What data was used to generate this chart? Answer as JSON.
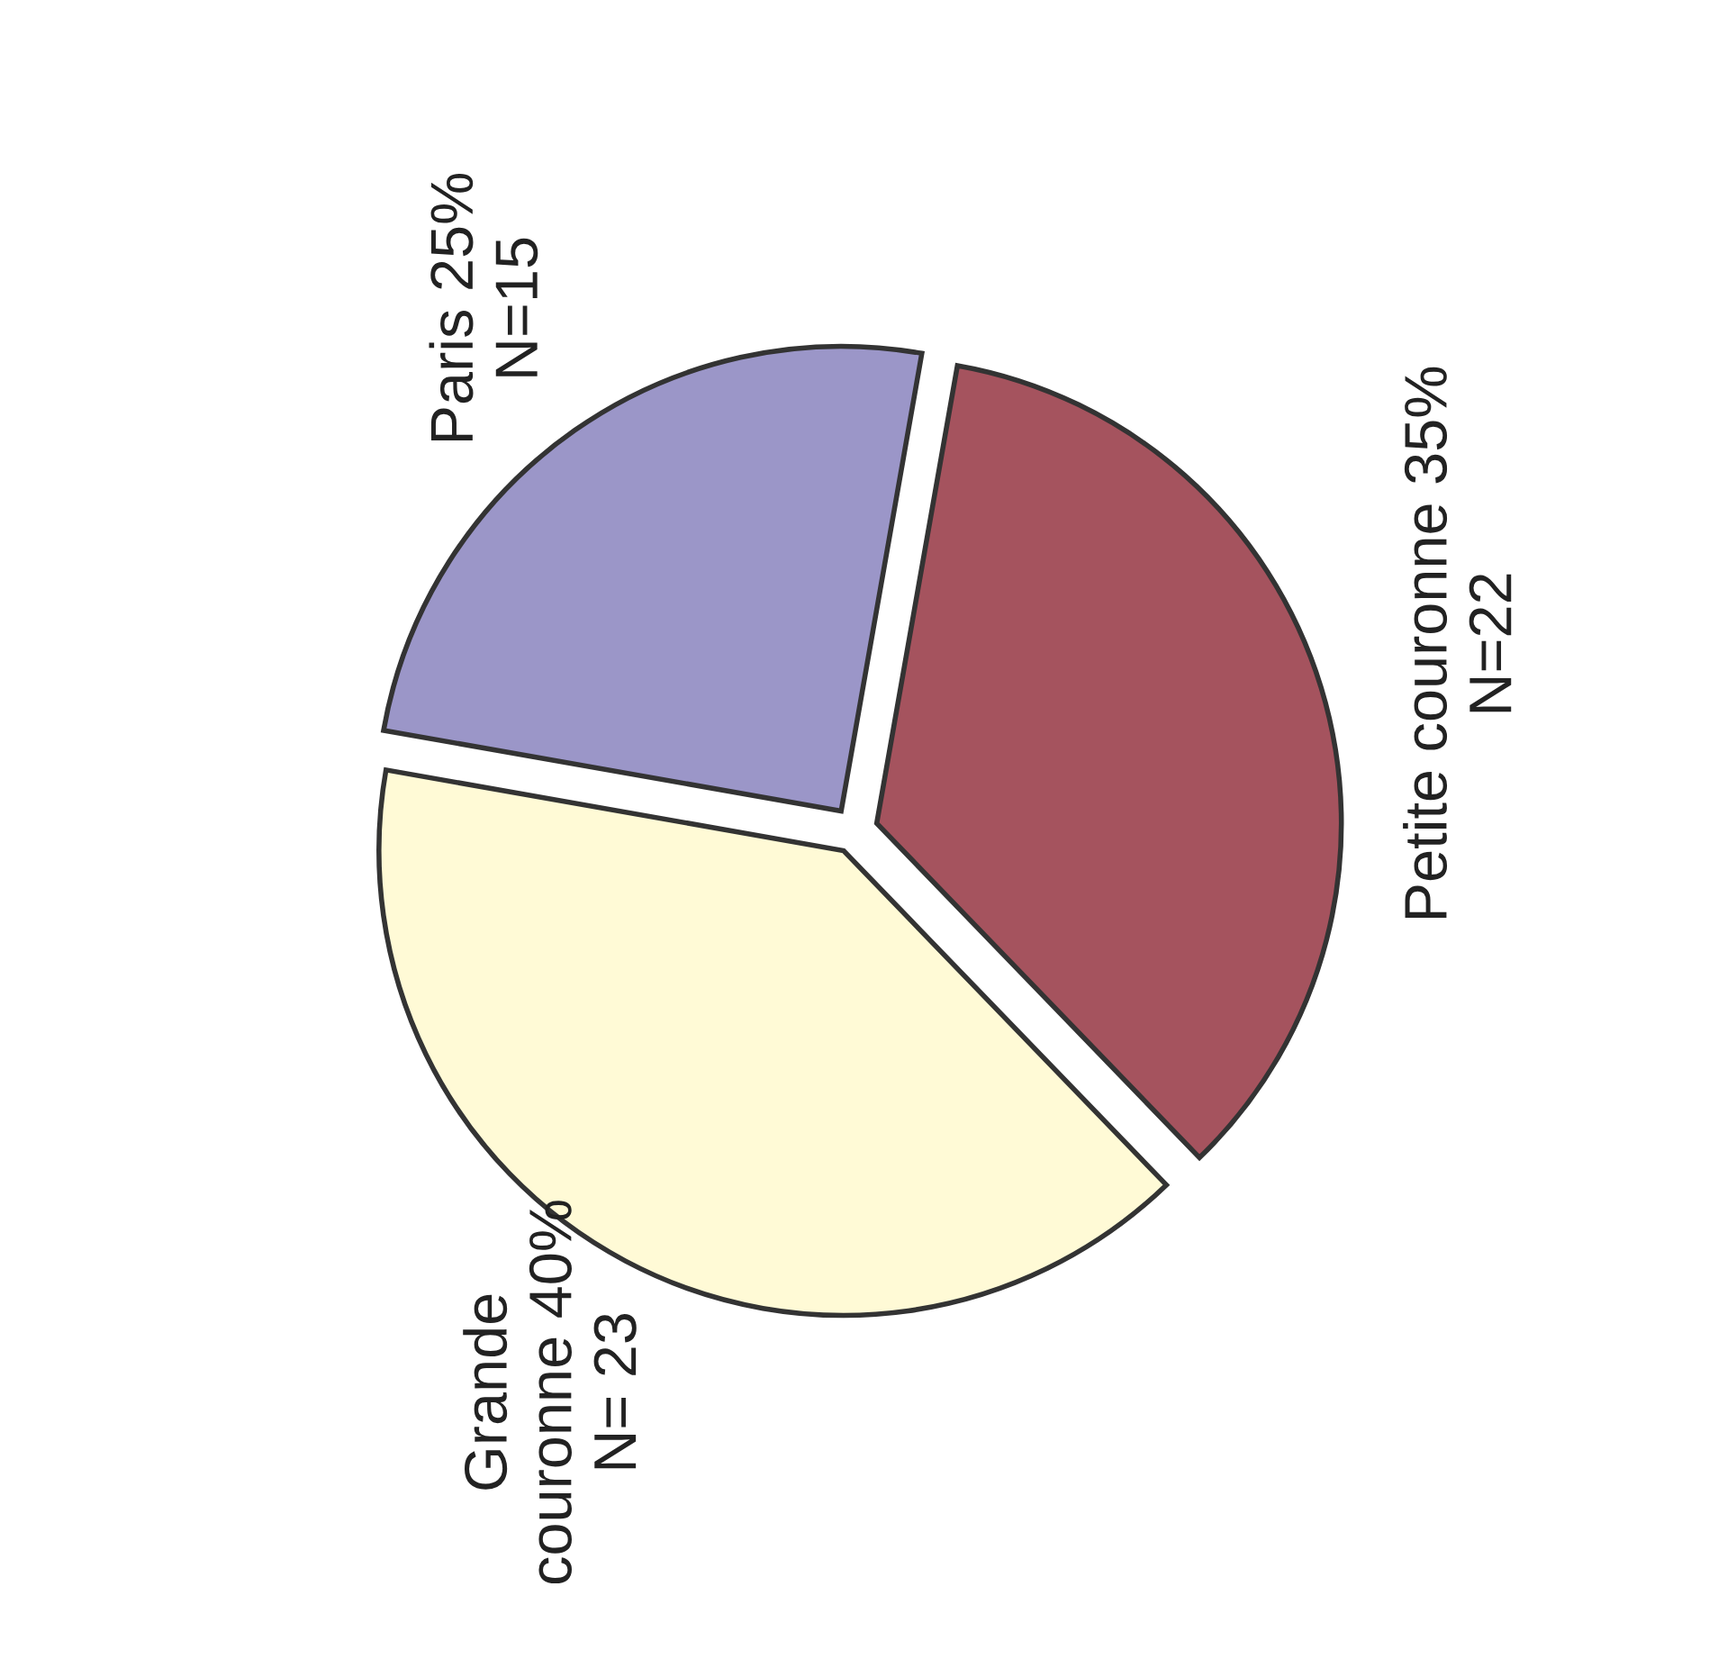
{
  "chart_data": {
    "type": "pie",
    "categories": [
      "Paris",
      "Grande\ncouronne",
      "Petite couronne"
    ],
    "values": [
      25,
      40,
      35
    ],
    "value_labels": [
      "25%\nN=15",
      "40%\nN= 23",
      "35%\nN=22"
    ],
    "colors": [
      "#9b96c8",
      "#fffad6",
      "#a5535e"
    ]
  }
}
